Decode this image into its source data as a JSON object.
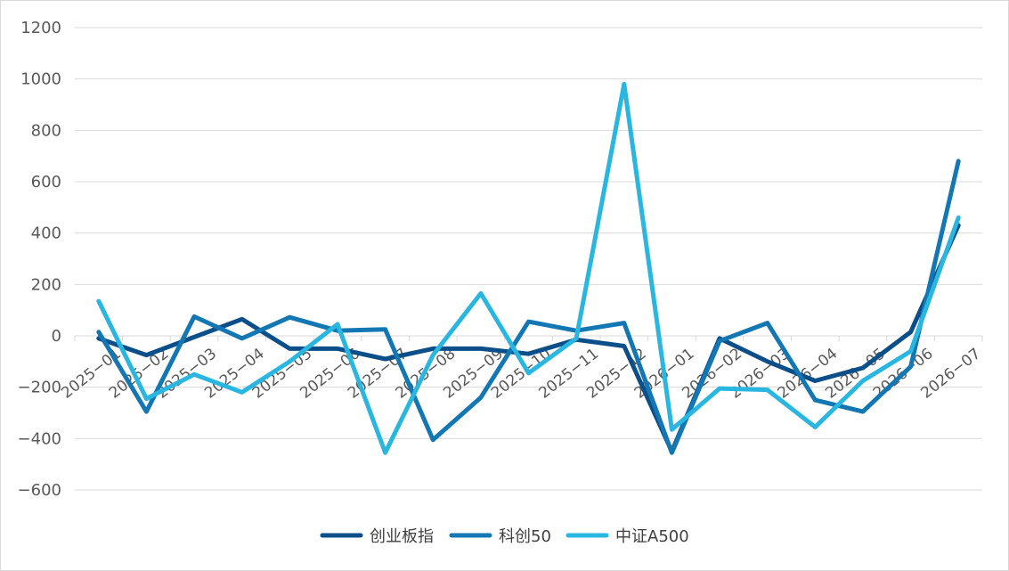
{
  "chart_data": {
    "type": "line",
    "title": "",
    "xlabel": "",
    "ylabel": "",
    "ylim": [
      -600,
      1200
    ],
    "y_ticks": [
      -600,
      -400,
      -200,
      0,
      200,
      400,
      600,
      800,
      1000,
      1200
    ],
    "y_tick_labels": [
      "−600",
      "−400",
      "−200",
      "0",
      "200",
      "400",
      "600",
      "800",
      "1000",
      "1200"
    ],
    "grid": true,
    "legend_position": "bottom",
    "categories": [
      "2025-01",
      "2025-02",
      "2025-03",
      "2025-04",
      "2025-05",
      "2025-06",
      "2025-07",
      "2025-08",
      "2025-09",
      "2025-10",
      "2025-11",
      "2025-12",
      "2026-01",
      "2026-02",
      "2026-03",
      "2026-04",
      "2026-05",
      "2026-06",
      "2026-07"
    ],
    "x_tick_labels": [
      "2025−01",
      "2025−02",
      "2025−03",
      "2025−04",
      "2025−05",
      "2025−06",
      "2025−07",
      "2025−08",
      "2025−09",
      "2025−10",
      "2025−11",
      "2025−12",
      "2026−01",
      "2026−02",
      "2026−03",
      "2026−04",
      "2026−05",
      "2026−06",
      "2026−07"
    ],
    "series": [
      {
        "name": "创业板指",
        "color": "#0b4f8a",
        "values": [
          -10,
          -75,
          -5,
          65,
          -50,
          -50,
          -90,
          -50,
          -50,
          -70,
          -15,
          -40,
          -450,
          -10,
          -100,
          -175,
          -125,
          15,
          430
        ]
      },
      {
        "name": "科创50",
        "color": "#1377b3",
        "values": [
          15,
          -295,
          75,
          -10,
          72,
          20,
          25,
          -405,
          -240,
          55,
          20,
          50,
          -455,
          -20,
          50,
          -250,
          -295,
          -120,
          680
        ]
      },
      {
        "name": "中证A500",
        "color": "#29b6e0",
        "values": [
          135,
          -245,
          -150,
          -220,
          -100,
          45,
          -455,
          -75,
          165,
          -145,
          -10,
          980,
          -365,
          -205,
          -210,
          -355,
          -175,
          -60,
          460
        ]
      }
    ]
  }
}
